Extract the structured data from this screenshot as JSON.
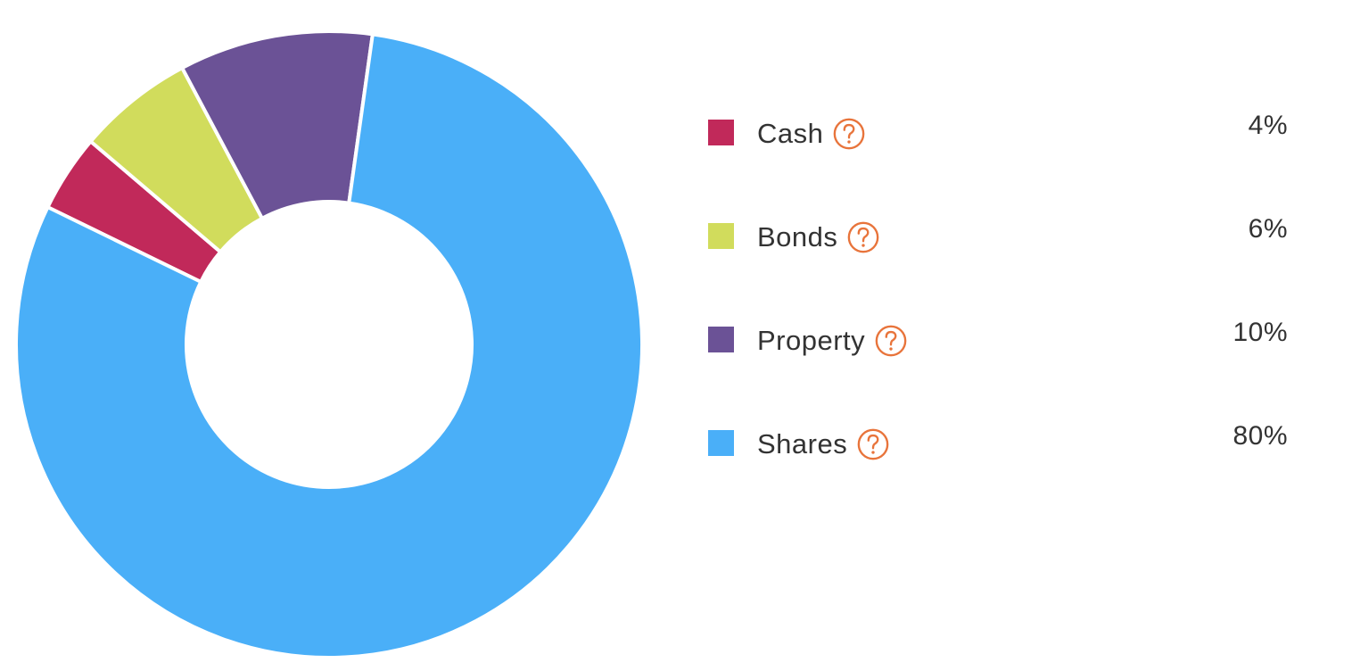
{
  "chart_data": {
    "type": "pie",
    "style": "donut",
    "categories": [
      "Cash",
      "Bonds",
      "Property",
      "Shares"
    ],
    "values": [
      4,
      6,
      10,
      80
    ],
    "value_labels": [
      "4%",
      "6%",
      "10%",
      "80%"
    ],
    "colors": [
      "#c1295a",
      "#d1dc5c",
      "#6b5296",
      "#4aaff8"
    ],
    "legend_position": "right"
  },
  "legend": {
    "items": [
      {
        "label": "Cash",
        "value": "4%",
        "color": "#c1295a",
        "help_icon": "question-circle-icon"
      },
      {
        "label": "Bonds",
        "value": "6%",
        "color": "#d1dc5c",
        "help_icon": "question-circle-icon"
      },
      {
        "label": "Property",
        "value": "10%",
        "color": "#6b5296",
        "help_icon": "question-circle-icon"
      },
      {
        "label": "Shares",
        "value": "80%",
        "color": "#4aaff8",
        "help_icon": "question-circle-icon"
      }
    ]
  },
  "colors": {
    "help_icon": "#e8743b",
    "text": "#333333",
    "slice_border": "#ffffff"
  }
}
